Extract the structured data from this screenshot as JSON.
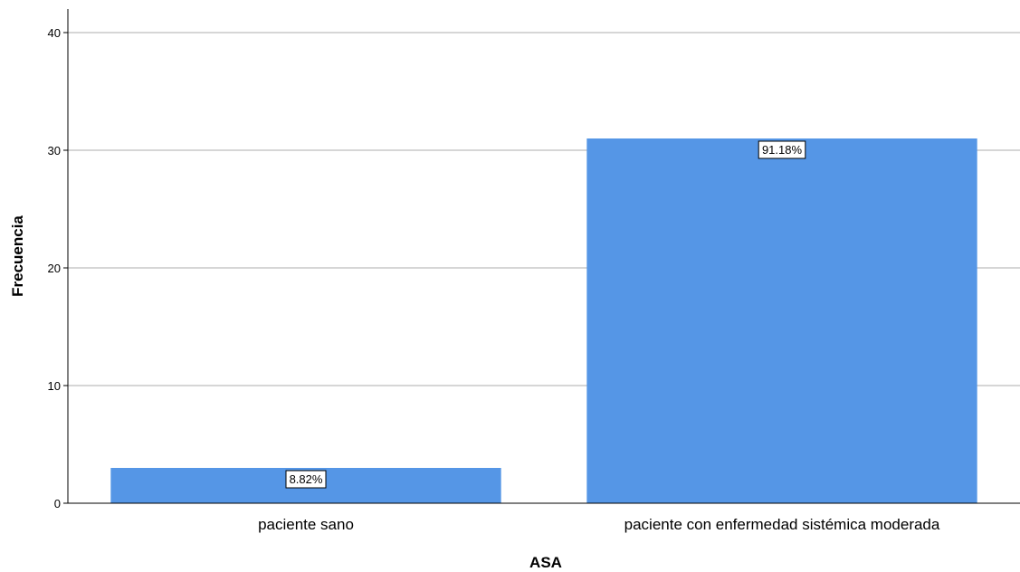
{
  "chart_data": {
    "type": "bar",
    "categories": [
      "paciente sano",
      "paciente con enfermedad sistémica moderada"
    ],
    "values": [
      3,
      31
    ],
    "data_labels": [
      "8.82%",
      "91.18%"
    ],
    "xlabel": "ASA",
    "ylabel": "Frecuencia",
    "ylim": [
      0,
      42
    ],
    "yticks": [
      0,
      10,
      20,
      30,
      40
    ],
    "grid": true,
    "bar_color": "#5596e6",
    "legend": "none"
  }
}
